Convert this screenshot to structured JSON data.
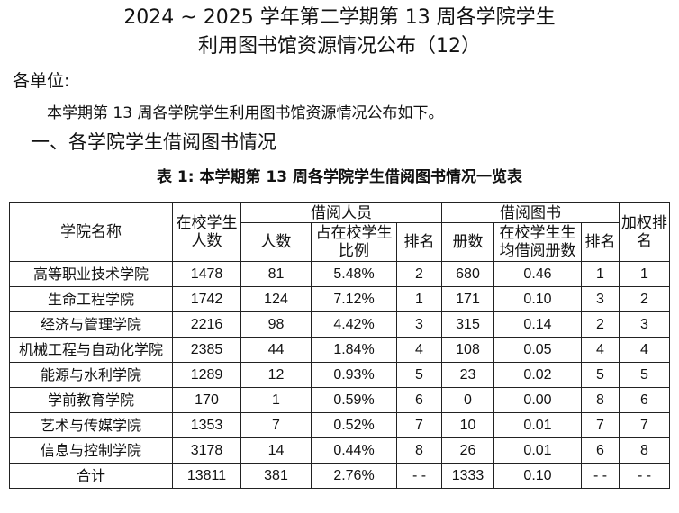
{
  "title_line1": "2024 ~ 2025 学年第二学期第 13 周各学院学生",
  "title_line2": "利用图书馆资源情况公布（12）",
  "salutation": "各单位:",
  "intro": "本学期第 13 周各学院学生利用图书馆资源情况公布如下。",
  "section_heading": "一、各学院学生借阅图书情况",
  "table_caption": "表 1:  本学期第 13 周各学院学生借阅图书情况一览表",
  "headers": {
    "college": "学院名称",
    "students": "在校学生人数",
    "borrowers_group": "借阅人员",
    "borrowers_count": "人数",
    "borrowers_ratio": "占在校学生比例",
    "borrowers_rank": "排名",
    "books_group": "借阅图书",
    "books_count": "册数",
    "books_avg": "在校学生生均借阅册数",
    "books_rank": "排名",
    "weighted_rank": "加权排名"
  },
  "rows": [
    {
      "college": "高等职业技术学院",
      "students": "1478",
      "borrowers": "81",
      "ratio": "5.48%",
      "rank1": "2",
      "books": "680",
      "avg": "0.46",
      "rank2": "1",
      "weighted": "1"
    },
    {
      "college": "生命工程学院",
      "students": "1742",
      "borrowers": "124",
      "ratio": "7.12%",
      "rank1": "1",
      "books": "171",
      "avg": "0.10",
      "rank2": "3",
      "weighted": "2"
    },
    {
      "college": "经济与管理学院",
      "students": "2216",
      "borrowers": "98",
      "ratio": "4.42%",
      "rank1": "3",
      "books": "315",
      "avg": "0.14",
      "rank2": "2",
      "weighted": "3"
    },
    {
      "college": "机械工程与自动化学院",
      "students": "2385",
      "borrowers": "44",
      "ratio": "1.84%",
      "rank1": "4",
      "books": "108",
      "avg": "0.05",
      "rank2": "4",
      "weighted": "4"
    },
    {
      "college": "能源与水利学院",
      "students": "1289",
      "borrowers": "12",
      "ratio": "0.93%",
      "rank1": "5",
      "books": "23",
      "avg": "0.02",
      "rank2": "5",
      "weighted": "5"
    },
    {
      "college": "学前教育学院",
      "students": "170",
      "borrowers": "1",
      "ratio": "0.59%",
      "rank1": "6",
      "books": "0",
      "avg": "0.00",
      "rank2": "8",
      "weighted": "6"
    },
    {
      "college": "艺术与传媒学院",
      "students": "1353",
      "borrowers": "7",
      "ratio": "0.52%",
      "rank1": "7",
      "books": "10",
      "avg": "0.01",
      "rank2": "7",
      "weighted": "7"
    },
    {
      "college": "信息与控制学院",
      "students": "3178",
      "borrowers": "14",
      "ratio": "0.44%",
      "rank1": "8",
      "books": "26",
      "avg": "0.01",
      "rank2": "6",
      "weighted": "8"
    },
    {
      "college": "合计",
      "students": "13811",
      "borrowers": "381",
      "ratio": "2.76%",
      "rank1": "- -",
      "books": "1333",
      "avg": "0.10",
      "rank2": "- -",
      "weighted": "- -"
    }
  ]
}
